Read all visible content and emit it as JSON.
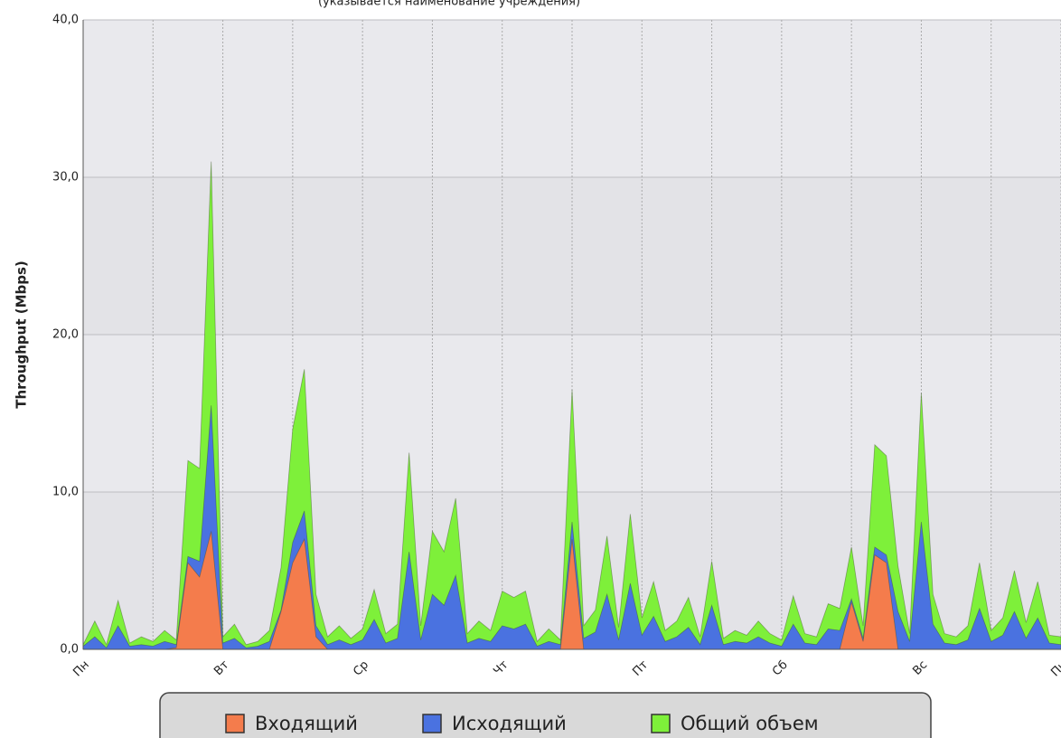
{
  "chart_data": {
    "type": "area",
    "title": "(указывается наименование учреждения)",
    "y_label": "Throughput (Mbps)",
    "x": [
      0,
      2,
      4,
      6,
      8,
      10,
      12,
      14,
      16,
      18,
      20,
      22,
      24,
      26,
      28,
      30,
      32,
      34,
      36,
      38,
      40,
      42,
      44,
      46,
      48,
      50,
      52,
      54,
      56,
      58,
      60,
      62,
      64,
      66,
      68,
      70,
      72,
      74,
      76,
      78,
      80,
      82,
      84,
      86,
      88,
      90,
      92,
      94,
      96,
      98,
      100,
      102,
      104,
      106,
      108,
      110,
      112,
      114,
      116,
      118,
      120,
      122,
      124,
      126,
      128,
      130,
      132,
      134,
      136,
      138,
      140,
      142,
      144,
      146,
      148,
      150,
      152,
      154,
      156,
      158,
      160,
      162,
      164,
      166,
      168
    ],
    "series": [
      {
        "name": "Общий объем",
        "color": "#7ef03a",
        "values": [
          0.3,
          1.8,
          0.3,
          3.1,
          0.4,
          0.8,
          0.5,
          1.2,
          0.6,
          12,
          11.5,
          31,
          0.8,
          1.6,
          0.3,
          0.5,
          1.2,
          5.2,
          14,
          17.8,
          3.5,
          0.8,
          1.5,
          0.7,
          1.3,
          3.8,
          1.0,
          1.6,
          12.5,
          1.5,
          7.5,
          6.2,
          9.6,
          1.0,
          1.8,
          1.2,
          3.7,
          3.3,
          3.7,
          0.5,
          1.3,
          0.6,
          16.5,
          1.5,
          2.5,
          7.2,
          1.4,
          8.6,
          2.0,
          4.3,
          1.2,
          1.8,
          3.3,
          0.8,
          5.6,
          0.7,
          1.2,
          0.9,
          1.8,
          1.0,
          0.6,
          3.4,
          1.0,
          0.8,
          2.9,
          2.6,
          6.5,
          1.5,
          13,
          12.3,
          5.3,
          1.0,
          16.3,
          3.5,
          1.0,
          0.8,
          1.5,
          5.5,
          1.2,
          2.0,
          5.0,
          1.7,
          4.3,
          0.9,
          0.8
        ]
      },
      {
        "name": "Исходящий",
        "color": "#4a72e0",
        "values": [
          0.2,
          0.8,
          0.1,
          1.5,
          0.2,
          0.3,
          0.2,
          0.5,
          0.3,
          5.9,
          5.6,
          15.5,
          0.4,
          0.7,
          0.1,
          0.2,
          0.5,
          2.5,
          6.8,
          8.8,
          1.5,
          0.3,
          0.6,
          0.3,
          0.6,
          1.9,
          0.4,
          0.7,
          6.2,
          0.6,
          3.5,
          2.8,
          4.7,
          0.4,
          0.7,
          0.5,
          1.5,
          1.3,
          1.6,
          0.2,
          0.5,
          0.3,
          8.1,
          0.7,
          1.1,
          3.5,
          0.6,
          4.2,
          0.9,
          2.1,
          0.5,
          0.8,
          1.4,
          0.3,
          2.8,
          0.3,
          0.5,
          0.4,
          0.8,
          0.4,
          0.2,
          1.6,
          0.4,
          0.3,
          1.3,
          1.2,
          3.2,
          0.7,
          6.5,
          6,
          2.4,
          0.5,
          8.1,
          1.6,
          0.4,
          0.3,
          0.6,
          2.6,
          0.5,
          0.9,
          2.4,
          0.7,
          2.0,
          0.4,
          0.3
        ]
      },
      {
        "name": "Входящий",
        "color": "#f47c4c",
        "values": [
          0,
          0,
          0,
          0,
          0,
          0,
          0,
          0,
          0.1,
          5.5,
          4.6,
          7.5,
          0,
          0,
          0,
          0,
          0,
          2.4,
          5.5,
          7,
          0.8,
          0,
          0,
          0,
          0,
          0,
          0,
          0,
          0,
          0,
          0,
          0,
          0,
          0,
          0,
          0,
          0,
          0,
          0,
          0,
          0,
          0,
          7,
          0,
          0,
          0,
          0,
          0,
          0,
          0,
          0,
          0,
          0,
          0,
          0,
          0,
          0,
          0,
          0,
          0,
          0,
          0,
          0,
          0,
          0,
          0,
          3,
          0.5,
          6,
          5.5,
          0,
          0,
          0,
          0,
          0,
          0,
          0,
          0,
          0,
          0,
          0,
          0,
          0,
          0,
          0
        ]
      }
    ],
    "legend_order": [
      2,
      1,
      0
    ],
    "xlim": [
      0,
      168
    ],
    "xticks": [
      {
        "value": 0,
        "label": "Пн"
      },
      {
        "value": 24,
        "label": "Вт"
      },
      {
        "value": 48,
        "label": "Ср"
      },
      {
        "value": 72,
        "label": "Чт"
      },
      {
        "value": 96,
        "label": "Пт"
      },
      {
        "value": 120,
        "label": "Сб"
      },
      {
        "value": 144,
        "label": "Вс"
      },
      {
        "value": 168,
        "label": "Пн"
      }
    ],
    "xminorticks": [
      12,
      36,
      60,
      84,
      108,
      132,
      156
    ],
    "ylim": [
      0,
      40
    ],
    "yticks": [
      {
        "value": 0,
        "label": "0,0"
      },
      {
        "value": 10,
        "label": "10,0"
      },
      {
        "value": 20,
        "label": "20,0"
      },
      {
        "value": 30,
        "label": "30,0"
      },
      {
        "value": 40,
        "label": "40,0"
      }
    ],
    "grid": true
  }
}
